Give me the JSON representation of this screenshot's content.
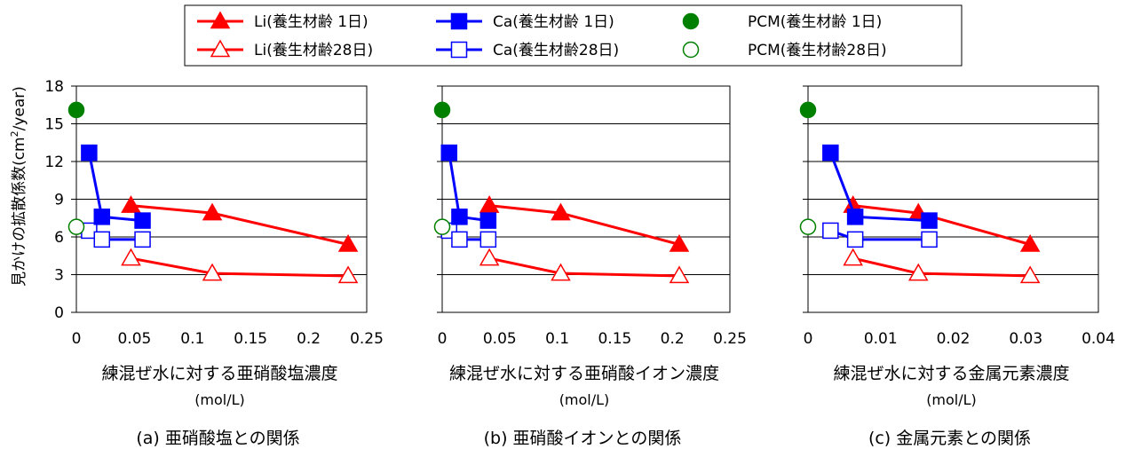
{
  "legend": {
    "items": [
      {
        "label": "Li(養生材齢 1日)",
        "series": "li_1"
      },
      {
        "label": "Ca(養生材齢 1日)",
        "series": "ca_1"
      },
      {
        "label": "PCM(養生材齢 1日)",
        "series": "pcm_1"
      },
      {
        "label": "Li(養生材齢28日)",
        "series": "li_28"
      },
      {
        "label": "Ca(養生材齢28日)",
        "series": "ca_28"
      },
      {
        "label": "PCM(養生材齢28日)",
        "series": "pcm_28"
      }
    ]
  },
  "styles": {
    "li_1": {
      "color": "#ff0000",
      "marker": "triangle",
      "filled": true,
      "line": true
    },
    "li_28": {
      "color": "#ff0000",
      "marker": "triangle",
      "filled": false,
      "line": true
    },
    "ca_1": {
      "color": "#0000ff",
      "marker": "square",
      "filled": true,
      "line": true
    },
    "ca_28": {
      "color": "#0000ff",
      "marker": "square",
      "filled": false,
      "line": true
    },
    "pcm_1": {
      "color": "#008000",
      "marker": "circle",
      "filled": true,
      "line": false
    },
    "pcm_28": {
      "color": "#008000",
      "marker": "circle",
      "filled": false,
      "line": false
    }
  },
  "ylabel_main": "見かけの拡散係数(cm",
  "ylabel_sup": "2",
  "ylabel_tail": "/year)",
  "chart_data": [
    {
      "type": "line",
      "caption": "(a) 亜硝酸塩との関係",
      "xlabel": "練混ぜ水に対する亜硝酸塩濃度",
      "xunit": "(mol/L)",
      "ylim": [
        0,
        18
      ],
      "yticks": [
        0,
        3,
        6,
        9,
        12,
        15,
        18
      ],
      "xlim": [
        0,
        0.25
      ],
      "xticks": [
        "0",
        "0.05",
        "0.1",
        "0.15",
        "0.2",
        "0.25"
      ],
      "grid": "horizontal",
      "series": [
        {
          "key": "li_1",
          "x": [
            0.047,
            0.117,
            0.234
          ],
          "y": [
            8.5,
            7.9,
            5.4
          ]
        },
        {
          "key": "li_28",
          "x": [
            0.047,
            0.117,
            0.234
          ],
          "y": [
            4.3,
            3.1,
            2.9
          ]
        },
        {
          "key": "ca_1",
          "x": [
            0.011,
            0.022,
            0.057
          ],
          "y": [
            12.7,
            7.6,
            7.3
          ]
        },
        {
          "key": "ca_28",
          "x": [
            0.011,
            0.022,
            0.057
          ],
          "y": [
            6.5,
            5.8,
            5.8
          ]
        },
        {
          "key": "pcm_1",
          "x": [
            0
          ],
          "y": [
            16.1
          ]
        },
        {
          "key": "pcm_28",
          "x": [
            0
          ],
          "y": [
            6.8
          ]
        }
      ]
    },
    {
      "type": "line",
      "caption": "(b) 亜硝酸イオンとの関係",
      "xlabel": "練混ぜ水に対する亜硝酸イオン濃度",
      "xunit": "(mol/L)",
      "ylim": [
        0,
        18
      ],
      "yticks": [
        0,
        3,
        6,
        9,
        12,
        15,
        18
      ],
      "xlim": [
        0,
        0.25
      ],
      "xticks": [
        "0",
        "0.05",
        "0.1",
        "0.15",
        "0.2",
        "0.25"
      ],
      "grid": "horizontal",
      "series": [
        {
          "key": "li_1",
          "x": [
            0.041,
            0.103,
            0.206
          ],
          "y": [
            8.5,
            7.9,
            5.4
          ]
        },
        {
          "key": "li_28",
          "x": [
            0.041,
            0.103,
            0.206
          ],
          "y": [
            4.3,
            3.1,
            2.9
          ]
        },
        {
          "key": "ca_1",
          "x": [
            0.006,
            0.015,
            0.04
          ],
          "y": [
            12.7,
            7.6,
            7.3
          ]
        },
        {
          "key": "ca_28",
          "x": [
            0.006,
            0.015,
            0.04
          ],
          "y": [
            6.5,
            5.8,
            5.8
          ]
        },
        {
          "key": "pcm_1",
          "x": [
            0
          ],
          "y": [
            16.1
          ]
        },
        {
          "key": "pcm_28",
          "x": [
            0
          ],
          "y": [
            6.8
          ]
        }
      ]
    },
    {
      "type": "line",
      "caption": "(c) 金属元素との関係",
      "xlabel": "練混ぜ水に対する金属元素濃度",
      "xunit": "(mol/L)",
      "ylim": [
        0,
        18
      ],
      "yticks": [
        0,
        3,
        6,
        9,
        12,
        15,
        18
      ],
      "xlim": [
        0,
        0.04
      ],
      "xticks": [
        "0",
        "0.01",
        "0.02",
        "0.03",
        "0.04"
      ],
      "grid": "horizontal",
      "series": [
        {
          "key": "li_1",
          "x": [
            0.0062,
            0.0152,
            0.0306
          ],
          "y": [
            8.5,
            7.9,
            5.4
          ]
        },
        {
          "key": "li_28",
          "x": [
            0.0062,
            0.0152,
            0.0306
          ],
          "y": [
            4.3,
            3.1,
            2.9
          ]
        },
        {
          "key": "ca_1",
          "x": [
            0.0031,
            0.0065,
            0.0167
          ],
          "y": [
            12.7,
            7.6,
            7.3
          ]
        },
        {
          "key": "ca_28",
          "x": [
            0.0031,
            0.0065,
            0.0167
          ],
          "y": [
            6.5,
            5.8,
            5.8
          ]
        },
        {
          "key": "pcm_1",
          "x": [
            0
          ],
          "y": [
            16.1
          ]
        },
        {
          "key": "pcm_28",
          "x": [
            0
          ],
          "y": [
            6.8
          ]
        }
      ]
    }
  ]
}
